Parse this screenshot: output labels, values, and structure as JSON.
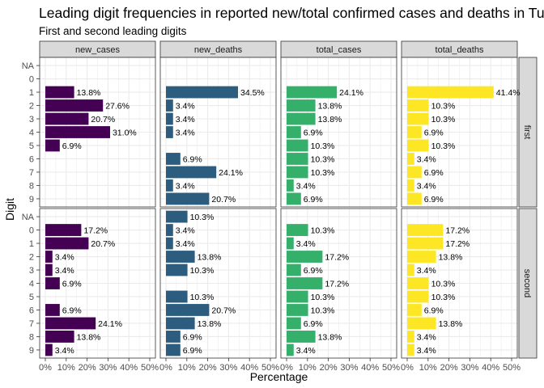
{
  "chart_data": {
    "type": "bar",
    "orientation": "horizontal",
    "title": "Leading digit frequencies in reported new/total confirmed cases and deaths in Tu",
    "subtitle": "First and second leading digits",
    "xlabel": "Percentage",
    "ylabel": "Digit",
    "xlim": [
      0,
      50
    ],
    "x_ticks": [
      "0%",
      "10%",
      "20%",
      "30%",
      "40%",
      "50%"
    ],
    "categories": [
      "NA",
      "0",
      "1",
      "2",
      "3",
      "4",
      "5",
      "6",
      "7",
      "8",
      "9"
    ],
    "grid": true,
    "facet_columns": [
      "new_cases",
      "new_deaths",
      "total_cases",
      "total_deaths"
    ],
    "facet_rows": [
      "first",
      "second"
    ],
    "colors": {
      "new_cases": "#440154",
      "new_deaths": "#2c5d7f",
      "total_cases": "#35b06a",
      "total_deaths": "#fde725",
      "strip_fill": "#d9d9d9",
      "panel_border": "#333333",
      "grid_major": "#ebebeb"
    },
    "panels": [
      {
        "row": "first",
        "column": "new_cases",
        "values": [
          null,
          null,
          13.8,
          27.6,
          20.7,
          31.0,
          6.9,
          null,
          null,
          null,
          null
        ],
        "labels": [
          null,
          null,
          "13.8%",
          "27.6%",
          "20.7%",
          "31.0%",
          "6.9%",
          null,
          null,
          null,
          null
        ]
      },
      {
        "row": "first",
        "column": "new_deaths",
        "values": [
          null,
          null,
          34.5,
          3.4,
          3.4,
          3.4,
          null,
          6.9,
          24.1,
          3.4,
          20.7
        ],
        "labels": [
          null,
          null,
          "34.5%",
          "3.4%",
          "3.4%",
          "3.4%",
          null,
          "6.9%",
          "24.1%",
          "3.4%",
          "20.7%"
        ]
      },
      {
        "row": "first",
        "column": "total_cases",
        "values": [
          null,
          null,
          24.1,
          13.8,
          13.8,
          6.9,
          10.3,
          10.3,
          10.3,
          3.4,
          6.9
        ],
        "labels": [
          null,
          null,
          "24.1%",
          "13.8%",
          "13.8%",
          "6.9%",
          "10.3%",
          "10.3%",
          "10.3%",
          "3.4%",
          "6.9%"
        ]
      },
      {
        "row": "first",
        "column": "total_deaths",
        "values": [
          null,
          null,
          41.4,
          10.3,
          10.3,
          6.9,
          10.3,
          3.4,
          6.9,
          3.4,
          6.9
        ],
        "labels": [
          null,
          null,
          "41.4%",
          "10.3%",
          "10.3%",
          "6.9%",
          "10.3%",
          "3.4%",
          "6.9%",
          "3.4%",
          "6.9%"
        ]
      },
      {
        "row": "second",
        "column": "new_cases",
        "values": [
          null,
          17.2,
          20.7,
          3.4,
          3.4,
          6.9,
          null,
          6.9,
          24.1,
          13.8,
          3.4
        ],
        "labels": [
          null,
          "17.2%",
          "20.7%",
          "3.4%",
          "3.4%",
          "6.9%",
          null,
          "6.9%",
          "24.1%",
          "13.8%",
          "3.4%"
        ]
      },
      {
        "row": "second",
        "column": "new_deaths",
        "values": [
          10.3,
          3.4,
          3.4,
          13.8,
          10.3,
          null,
          10.3,
          20.7,
          13.8,
          6.9,
          6.9
        ],
        "labels": [
          "10.3%",
          "3.4%",
          "3.4%",
          "13.8%",
          "10.3%",
          null,
          "10.3%",
          "20.7%",
          "13.8%",
          "6.9%",
          "6.9%"
        ]
      },
      {
        "row": "second",
        "column": "total_cases",
        "values": [
          null,
          10.3,
          3.4,
          17.2,
          6.9,
          17.2,
          10.3,
          10.3,
          6.9,
          13.8,
          3.4
        ],
        "labels": [
          null,
          "10.3%",
          "3.4%",
          "17.2%",
          "6.9%",
          "17.2%",
          "10.3%",
          "10.3%",
          "6.9%",
          "13.8%",
          "3.4%"
        ]
      },
      {
        "row": "second",
        "column": "total_deaths",
        "values": [
          null,
          17.2,
          17.2,
          13.8,
          3.4,
          10.3,
          10.3,
          6.9,
          13.8,
          3.4,
          3.4
        ],
        "labels": [
          null,
          "17.2%",
          "17.2%",
          "13.8%",
          "3.4%",
          "10.3%",
          "10.3%",
          "6.9%",
          "13.8%",
          "3.4%",
          "3.4%"
        ]
      }
    ]
  }
}
